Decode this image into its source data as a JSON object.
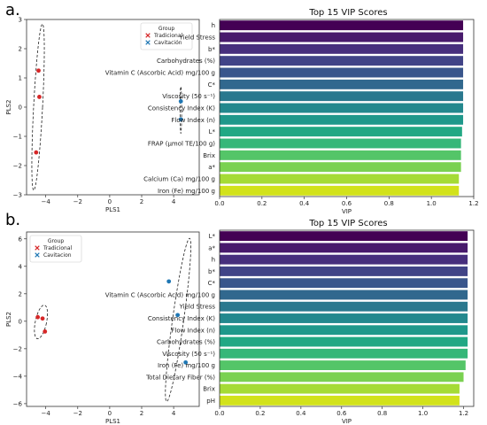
{
  "panels": [
    {
      "letter": "a.",
      "scatter": {
        "type": "scatter",
        "xlabel": "PLS1",
        "ylabel": "PLS2",
        "xlim": [
          -5.2,
          5.6
        ],
        "ylim": [
          -3,
          3
        ],
        "xticks": [
          -4,
          -2,
          0,
          2,
          4
        ],
        "yticks": [
          -3,
          -2,
          -1,
          0,
          1,
          2,
          3
        ],
        "legend_title": "Group",
        "legend_position": "top-right",
        "series": [
          {
            "name": "Tradicional",
            "color": "#d62728",
            "points": [
              [
                -4.45,
                1.25
              ],
              [
                -4.4,
                0.35
              ],
              [
                -4.6,
                -1.55
              ]
            ]
          },
          {
            "name": "Cavitación",
            "color": "#1f77b4",
            "points": [
              [
                4.45,
                0.2
              ],
              [
                4.45,
                -0.42
              ]
            ]
          }
        ],
        "ellipses": [
          {
            "cx": -4.48,
            "cy": 0.0,
            "rx": 0.28,
            "ry": 2.85,
            "angle": 3
          },
          {
            "cx": 4.45,
            "cy": -0.1,
            "rx": 0.05,
            "ry": 0.8,
            "angle": 0
          }
        ]
      },
      "vip": {
        "type": "bar",
        "orientation": "horizontal",
        "title": "Top 15 VIP Scores",
        "xlabel": "VIP",
        "xlim": [
          0,
          1.2
        ],
        "xticks": [
          "0.0",
          "0.2",
          "0.4",
          "0.6",
          "0.8",
          "1.0",
          "1.2"
        ],
        "categories": [
          "h",
          "Yield Stress",
          "b*",
          "Carbohydrates (%)",
          "Vitamin C (Ascorbic Acid) mg/100 g",
          "C*",
          "Viscosity (50 s⁻¹)",
          "Consistency Index (K)",
          "Flow Index (n)",
          "L*",
          "FRAP (µmol TE/100 g)",
          "Brix",
          "a*",
          "Calcium (Ca) mg/100 g",
          "Iron (Fe) mg/100 g"
        ],
        "values": [
          1.15,
          1.15,
          1.15,
          1.15,
          1.15,
          1.15,
          1.15,
          1.15,
          1.15,
          1.145,
          1.14,
          1.14,
          1.14,
          1.13,
          1.13
        ]
      }
    },
    {
      "letter": "b.",
      "scatter": {
        "type": "scatter",
        "xlabel": "PLS1",
        "ylabel": "PLS2",
        "xlim": [
          -5.2,
          5.6
        ],
        "ylim": [
          -6.2,
          6.5
        ],
        "xticks": [
          -4,
          -2,
          0,
          2,
          4
        ],
        "yticks": [
          -6,
          -4,
          -2,
          0,
          2,
          4,
          6
        ],
        "legend_title": "Group",
        "legend_position": "top-left",
        "series": [
          {
            "name": "Tradicional",
            "color": "#d62728",
            "points": [
              [
                -4.5,
                0.3
              ],
              [
                -4.2,
                0.2
              ],
              [
                -4.05,
                -0.75
              ]
            ]
          },
          {
            "name": "Cavitacion",
            "color": "#1f77b4",
            "points": [
              [
                3.7,
                2.9
              ],
              [
                4.25,
                0.45
              ],
              [
                4.75,
                -3.0
              ]
            ]
          }
        ],
        "ellipses": [
          {
            "cx": -4.3,
            "cy": -0.05,
            "rx": 0.35,
            "ry": 1.25,
            "angle": 12
          },
          {
            "cx": 4.28,
            "cy": 0.1,
            "rx": 0.35,
            "ry": 6.0,
            "angle": 8
          }
        ]
      },
      "vip": {
        "type": "bar",
        "orientation": "horizontal",
        "title": "Top 15 VIP Scores",
        "xlabel": "VIP",
        "xlim": [
          0,
          1.25
        ],
        "xticks": [
          "0.0",
          "0.2",
          "0.4",
          "0.6",
          "0.8",
          "1.0",
          "1.2"
        ],
        "categories": [
          "L*",
          "a*",
          "h",
          "b*",
          "C*",
          "Vitamin C (Ascorbic Acid) mg/100 g",
          "Yield Stress",
          "Consistency Index (K)",
          "Flow Index (n)",
          "Carbohydrates (%)",
          "Viscosity (50 s⁻¹)",
          "Iron (Fe) mg/100 g",
          "Total Dietary Fiber (%)",
          "Brix",
          "pH"
        ],
        "values": [
          1.22,
          1.22,
          1.22,
          1.22,
          1.22,
          1.22,
          1.22,
          1.22,
          1.22,
          1.22,
          1.22,
          1.21,
          1.2,
          1.18,
          1.18
        ]
      }
    }
  ],
  "colors": {
    "viridis": [
      "#440154",
      "#481a6c",
      "#472f7d",
      "#414487",
      "#39568c",
      "#31688e",
      "#2a788e",
      "#23888e",
      "#1f988b",
      "#22a884",
      "#35b779",
      "#54c568",
      "#7ad151",
      "#a5db36",
      "#d2e21b"
    ]
  }
}
